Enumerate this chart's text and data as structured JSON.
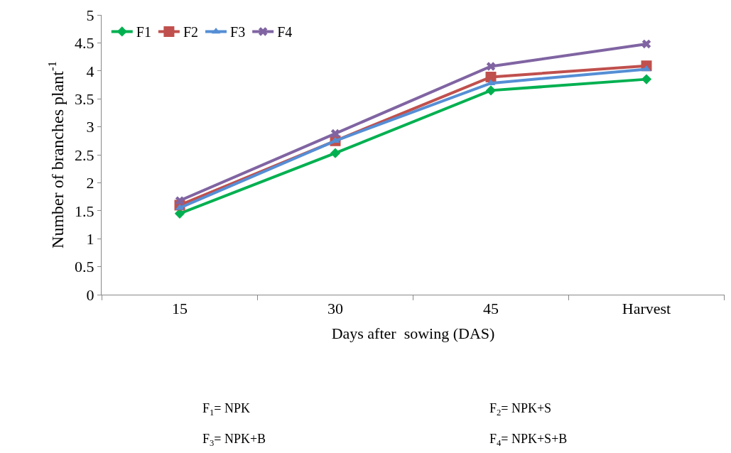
{
  "chart_data": {
    "type": "line",
    "xlabel": "Days after  sowing (DAS)",
    "ylabel": "Number of branches plant$^{-1}$",
    "categories": [
      "15",
      "30",
      "45",
      "Harvest"
    ],
    "series": [
      {
        "name": "F1",
        "color": "#00b050",
        "marker": "diamond",
        "values": [
          1.45,
          2.53,
          3.65,
          3.85
        ]
      },
      {
        "name": "F2",
        "color": "#c0504d",
        "marker": "square",
        "values": [
          1.6,
          2.75,
          3.89,
          4.09
        ]
      },
      {
        "name": "F3",
        "color": "#558ed5",
        "marker": "triangle",
        "values": [
          1.55,
          2.75,
          3.78,
          4.03
        ]
      },
      {
        "name": "F4",
        "color": "#8064a2",
        "marker": "cross",
        "values": [
          1.68,
          2.88,
          4.08,
          4.48
        ]
      }
    ],
    "ylim": [
      0,
      5
    ],
    "yticks": [
      0,
      0.5,
      1,
      1.5,
      2,
      2.5,
      3,
      3.5,
      4,
      4.5,
      5
    ],
    "legend": "top left",
    "annotations": [
      "F$_{1}$= NPK",
      "F$_{2}$= NPK+S",
      "F$_{3}$= NPK+B",
      "F$_{4}$= NPK+S+B"
    ]
  }
}
